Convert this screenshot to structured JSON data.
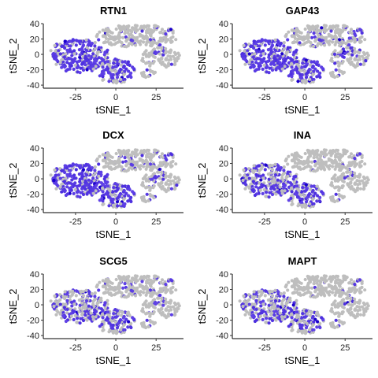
{
  "chart_data": {
    "type": "scatter",
    "layout": "3x2 grid of feature plots",
    "xlabel": "tSNE_1",
    "ylabel": "tSNE_2",
    "xlim": [
      -45,
      42
    ],
    "ylim": [
      -44,
      40
    ],
    "xticks": [
      -25,
      0,
      25
    ],
    "yticks": [
      40,
      20,
      0,
      -20,
      -40
    ],
    "low_color": "#BEBEBE",
    "high_color": "#1B00CC",
    "mid_color": "#7B5CF0",
    "grid": false,
    "legend": "none",
    "panels": [
      {
        "title": "RTN1",
        "expression_by_region": {
          "left_lobe": 0.75,
          "top_cluster": 0.05,
          "right_cluster": 0.1,
          "lower_middle": 0.7,
          "small_bottom": 0.15
        }
      },
      {
        "title": "GAP43",
        "expression_by_region": {
          "left_lobe": 0.75,
          "top_cluster": 0.15,
          "right_cluster": 0.25,
          "lower_middle": 0.7,
          "small_bottom": 0.2
        }
      },
      {
        "title": "DCX",
        "expression_by_region": {
          "left_lobe": 0.8,
          "top_cluster": 0.1,
          "right_cluster": 0.15,
          "lower_middle": 0.75,
          "small_bottom": 0.4
        }
      },
      {
        "title": "INA",
        "expression_by_region": {
          "left_lobe": 0.55,
          "top_cluster": 0.02,
          "right_cluster": 0.05,
          "lower_middle": 0.6,
          "small_bottom": 0.25
        }
      },
      {
        "title": "SCG5",
        "expression_by_region": {
          "left_lobe": 0.45,
          "top_cluster": 0.08,
          "right_cluster": 0.1,
          "lower_middle": 0.55,
          "small_bottom": 0.3
        }
      },
      {
        "title": "MAPT",
        "expression_by_region": {
          "left_lobe": 0.45,
          "top_cluster": 0.02,
          "right_cluster": 0.05,
          "lower_middle": 0.5,
          "small_bottom": 0.2
        }
      }
    ],
    "clusters": {
      "left_lobe": {
        "x_range": [
          -42,
          -5
        ],
        "y_range": [
          -30,
          22
        ]
      },
      "top_cluster": {
        "x_range": [
          -12,
          38
        ],
        "y_range": [
          8,
          38
        ]
      },
      "right_cluster": {
        "x_range": [
          15,
          40
        ],
        "y_range": [
          -18,
          10
        ]
      },
      "lower_middle": {
        "x_range": [
          -10,
          12
        ],
        "y_range": [
          -38,
          -5
        ]
      },
      "small_bottom": {
        "x_range": [
          15,
          25
        ],
        "y_range": [
          -30,
          -20
        ]
      }
    }
  }
}
